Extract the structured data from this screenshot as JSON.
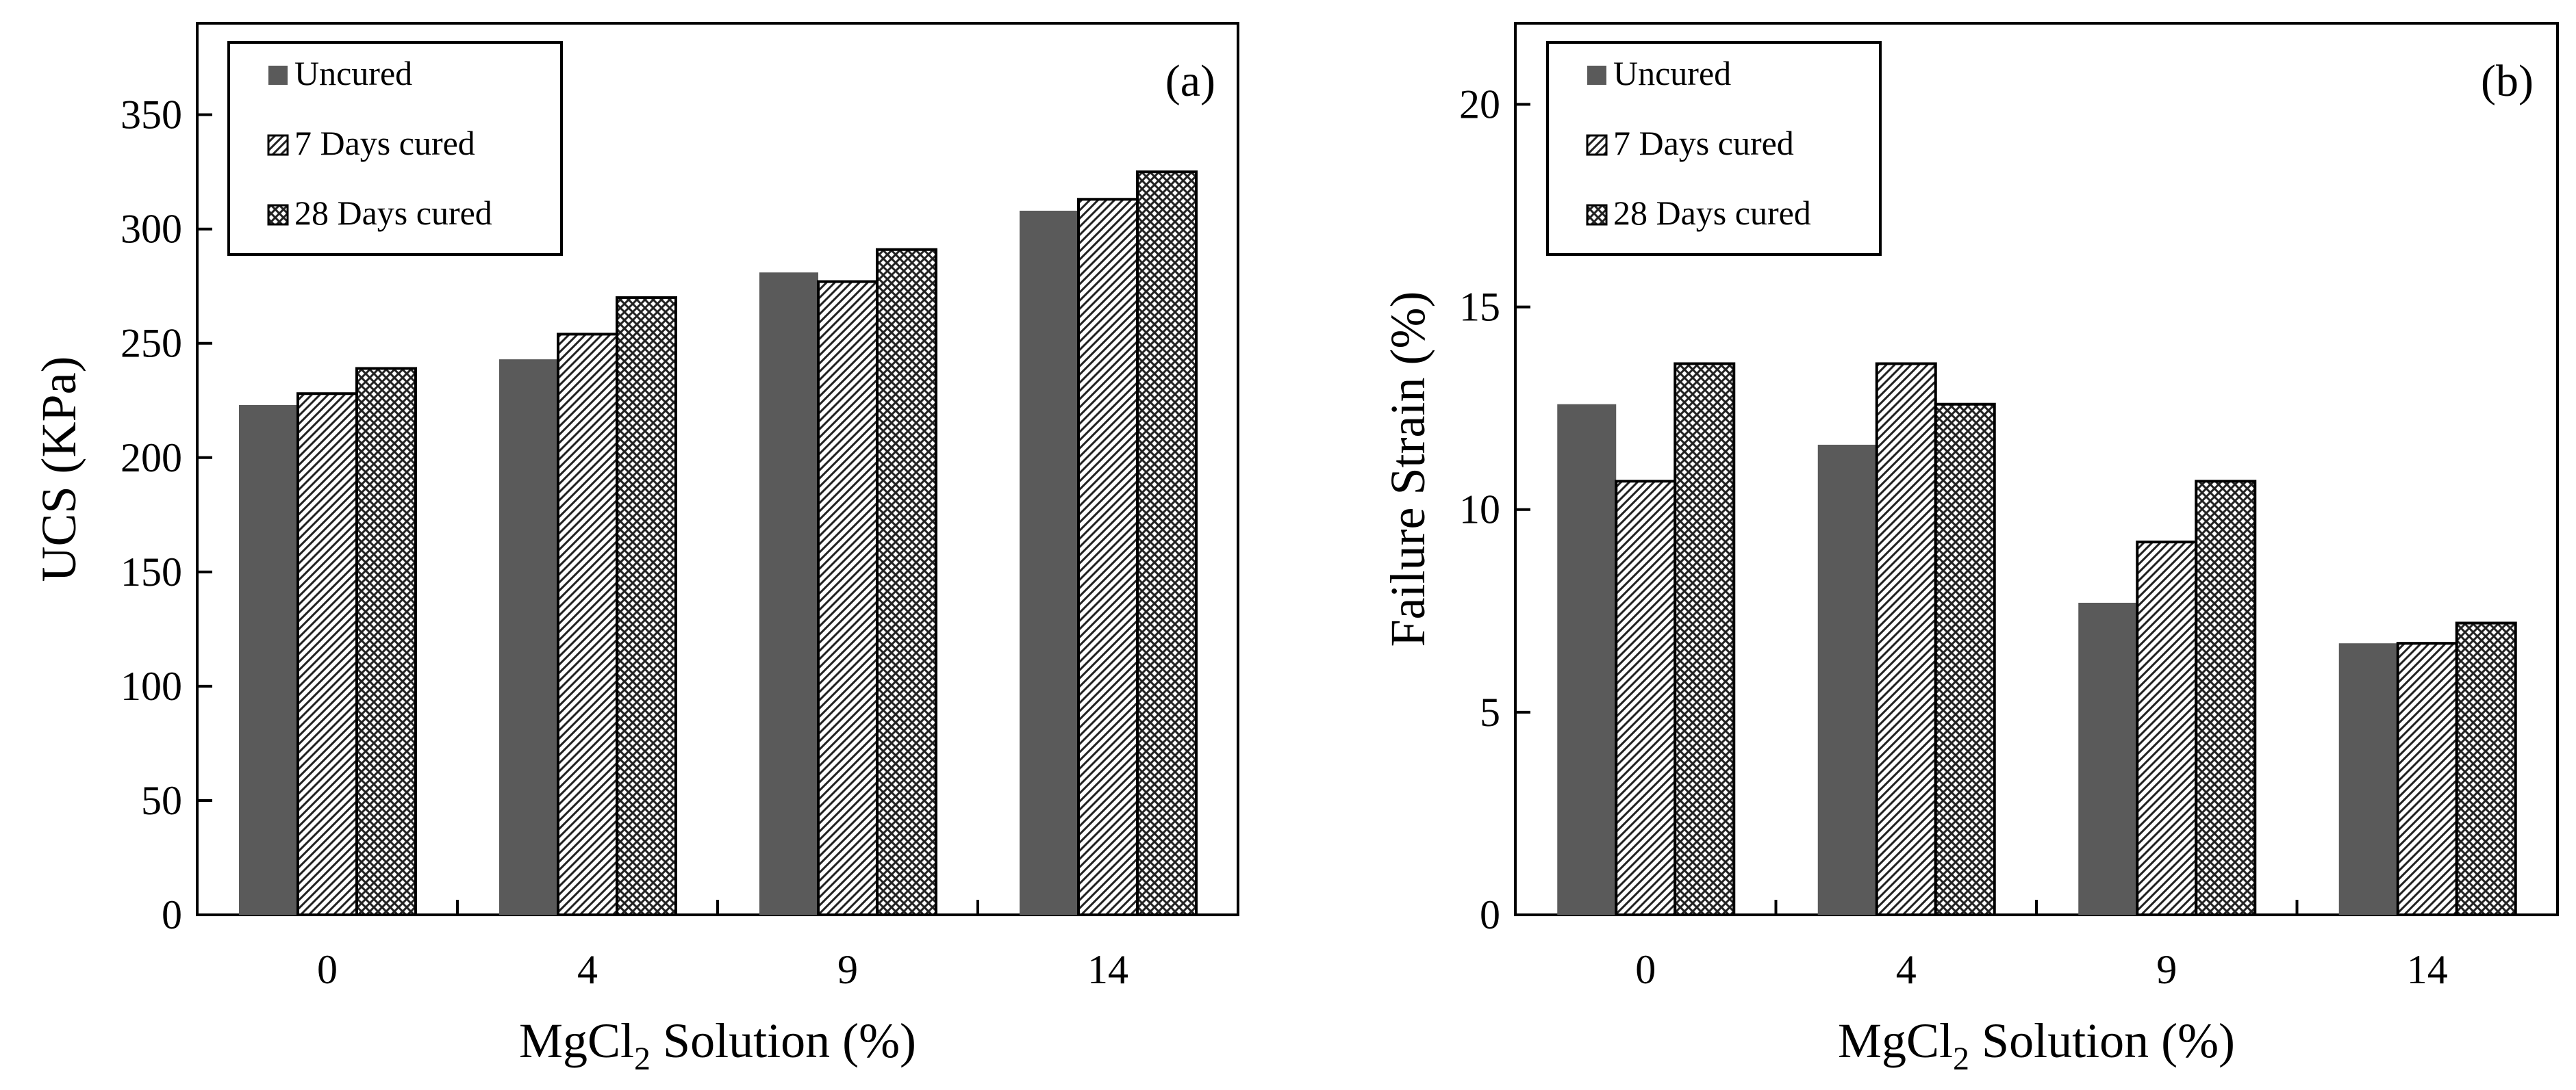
{
  "chart_data": [
    {
      "type": "bar",
      "panel_label": "(a)",
      "categories": [
        "0",
        "4",
        "9",
        "14"
      ],
      "series": [
        {
          "name": "Uncured",
          "pattern": "solid",
          "values": [
            223,
            243,
            281,
            308
          ]
        },
        {
          "name": "7 Days cured",
          "pattern": "diagonal",
          "values": [
            228,
            254,
            277,
            313
          ]
        },
        {
          "name": "28 Days cured",
          "pattern": "crosshatch",
          "values": [
            239,
            270,
            291,
            325
          ]
        }
      ],
      "yticks": [
        "0",
        "50",
        "100",
        "150",
        "200",
        "250",
        "300",
        "350"
      ],
      "ylim": [
        0,
        390
      ],
      "xlabel": {
        "main": "MgCl",
        "sub": "2",
        "rest": " Solution (%)"
      },
      "ylabel": "UCS (KPa)",
      "legend_position": "top-left"
    },
    {
      "type": "bar",
      "panel_label": "(b)",
      "categories": [
        "0",
        "4",
        "9",
        "14"
      ],
      "series": [
        {
          "name": "Uncured",
          "pattern": "solid",
          "values": [
            12.6,
            11.6,
            7.7,
            6.7
          ]
        },
        {
          "name": "7 Days cured",
          "pattern": "diagonal",
          "values": [
            10.7,
            13.6,
            9.2,
            6.7
          ]
        },
        {
          "name": "28 Days cured",
          "pattern": "crosshatch",
          "values": [
            13.6,
            12.6,
            10.7,
            7.2
          ]
        }
      ],
      "yticks": [
        "0",
        "5",
        "10",
        "15",
        "20"
      ],
      "ylim": [
        0,
        22
      ],
      "xlabel": {
        "main": "MgCl",
        "sub": "2",
        "rest": " Solution (%)"
      },
      "ylabel": "Failure Strain (%)",
      "legend_position": "top-left"
    }
  ],
  "colors": {
    "solid_fill": "#5a5a5a",
    "axis": "#000000",
    "background": "#ffffff"
  }
}
